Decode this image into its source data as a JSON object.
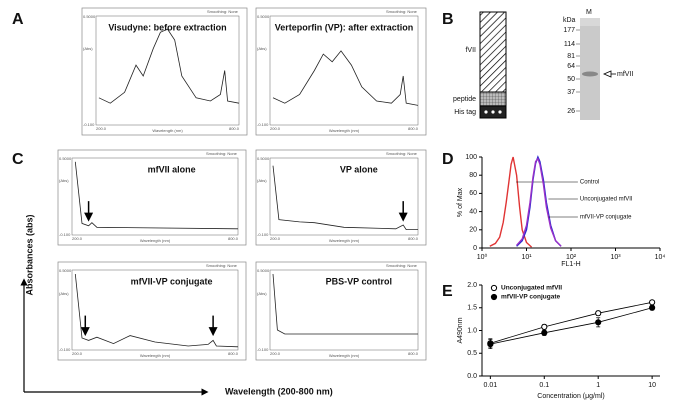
{
  "panels": {
    "A": {
      "label": "A",
      "plots": [
        {
          "title": "Visudyne: before extraction"
        },
        {
          "title": "Verteporfin (VP): after extraction"
        }
      ]
    },
    "B": {
      "label": "B",
      "construct": {
        "segments": [
          "fVII",
          "peptide",
          "His tag"
        ]
      },
      "gel": {
        "lane_label": "M",
        "unit": "kDa",
        "markers": [
          "177",
          "114",
          "81",
          "64",
          "50",
          "37",
          "26"
        ],
        "band_label": "mfVII"
      }
    },
    "C": {
      "label": "C",
      "y_label": "Absorbances (abs)",
      "x_label": "Wavelength (200-800 nm)",
      "plots": [
        {
          "title": "mfVII alone"
        },
        {
          "title": "VP alone"
        },
        {
          "title": "mfVII-VP conjugate"
        },
        {
          "title": "PBS-VP control"
        }
      ]
    },
    "D": {
      "label": "D"
    },
    "E": {
      "label": "E"
    },
    "instrument": {
      "smoothing": "Smoothing: None",
      "x_axis": "Wavelength (nm)",
      "y_axis": "(Abs)",
      "y_top": "0.5000",
      "y_bottom": "-0.100",
      "x_start": "200.0",
      "x_end": "800.0"
    }
  },
  "chart_data": [
    {
      "type": "line",
      "y_label": "% of Max",
      "x_label": "FL1-H",
      "log_x": true,
      "xlim": [
        1,
        10000
      ],
      "xticks": [
        {
          "value": 1,
          "label": "10⁰"
        },
        {
          "value": 10,
          "label": "10¹"
        },
        {
          "value": 100,
          "label": "10²"
        },
        {
          "value": 1000,
          "label": "10³"
        },
        {
          "value": 10000,
          "label": "10⁴"
        }
      ],
      "ylim": [
        0,
        100
      ],
      "yticks": [
        0,
        20,
        40,
        60,
        80,
        100
      ],
      "series": [
        {
          "name": "Control",
          "color": "#e03434",
          "x": [
            1.5,
            2,
            2.5,
            3,
            3.5,
            4,
            4.5,
            5,
            6,
            7,
            8,
            10,
            13
          ],
          "values": [
            2,
            5,
            12,
            28,
            50,
            72,
            92,
            100,
            80,
            45,
            20,
            6,
            1
          ]
        },
        {
          "name": "Unconjugated mfVII",
          "color": "#2a2ad0",
          "x": [
            6,
            8,
            10,
            12,
            14,
            16,
            18,
            20,
            24,
            28,
            35,
            45,
            60
          ],
          "values": [
            2,
            8,
            20,
            45,
            75,
            93,
            100,
            95,
            75,
            50,
            25,
            8,
            2
          ]
        },
        {
          "name": "mfVII-VP conjugate",
          "color": "#9a30c8",
          "x": [
            6,
            8,
            10,
            12,
            14,
            16,
            18,
            20,
            24,
            28,
            35,
            45,
            60
          ],
          "values": [
            3,
            10,
            25,
            50,
            78,
            95,
            98,
            92,
            70,
            45,
            22,
            8,
            2
          ]
        }
      ]
    },
    {
      "type": "errorline",
      "y_label": "A490nm",
      "x_label": "Concentration (μg/ml)",
      "log_x": true,
      "x": [
        0.01,
        0.1,
        1,
        10
      ],
      "xlim": [
        0.007,
        14
      ],
      "xticks": [
        0.01,
        0.1,
        1,
        10
      ],
      "ylim": [
        0,
        2
      ],
      "yticks": [
        {
          "value": 0,
          "label": "0.0"
        },
        0.5,
        {
          "value": 1,
          "label": "1.0"
        },
        1.5,
        {
          "value": 2,
          "label": "2.0"
        }
      ],
      "series": [
        {
          "name": "Unconjugated mfVII",
          "color": "#000000",
          "marker": "open",
          "values": [
            0.72,
            1.08,
            1.38,
            1.62
          ],
          "errors": [
            0.1,
            0.05,
            0.05,
            0.04
          ]
        },
        {
          "name": "mfVII-VP conjugate",
          "color": "#000000",
          "marker": "filled",
          "values": [
            0.7,
            0.95,
            1.18,
            1.5
          ],
          "errors": [
            0.1,
            0.06,
            0.1,
            0.05
          ]
        }
      ]
    }
  ]
}
